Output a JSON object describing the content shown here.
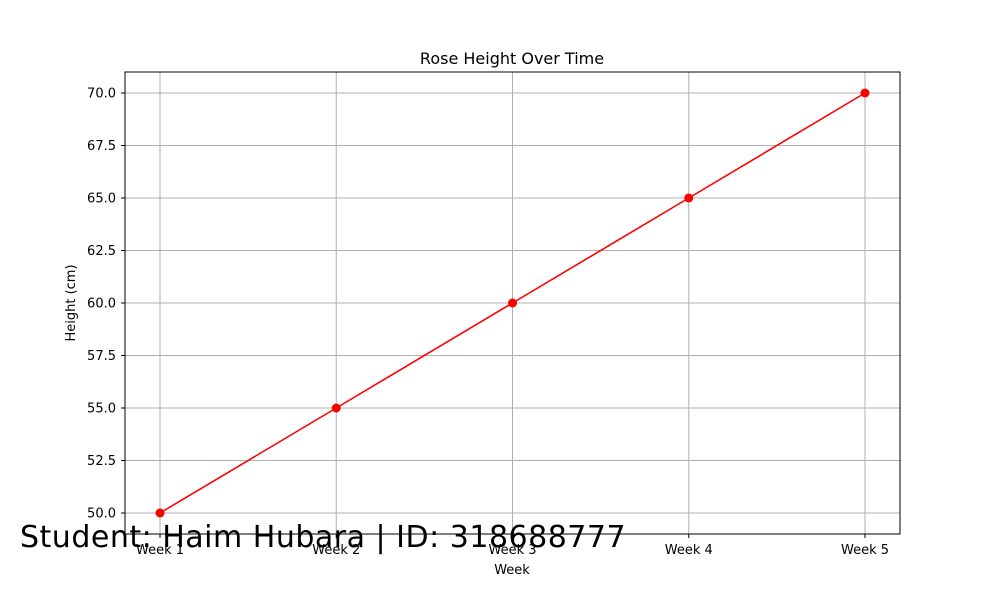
{
  "chart_data": {
    "type": "line",
    "title": "Rose Height Over Time",
    "xlabel": "Week",
    "ylabel": "Height (cm)",
    "categories": [
      "Week 1",
      "Week 2",
      "Week 3",
      "Week 4",
      "Week 5"
    ],
    "series": [
      {
        "values": [
          50,
          55,
          60,
          65,
          70
        ],
        "color": "#ff0000",
        "marker": "circle"
      }
    ],
    "ylim": [
      49,
      71
    ],
    "yticks": [
      "50.0",
      "52.5",
      "55.0",
      "57.5",
      "60.0",
      "62.5",
      "65.0",
      "67.5",
      "70.0"
    ],
    "ytick_values": [
      50,
      52.5,
      55,
      57.5,
      60,
      62.5,
      65,
      67.5,
      70
    ],
    "grid": true
  },
  "watermark": {
    "text": "Student: Haim Hubara | ID: 318688777"
  }
}
